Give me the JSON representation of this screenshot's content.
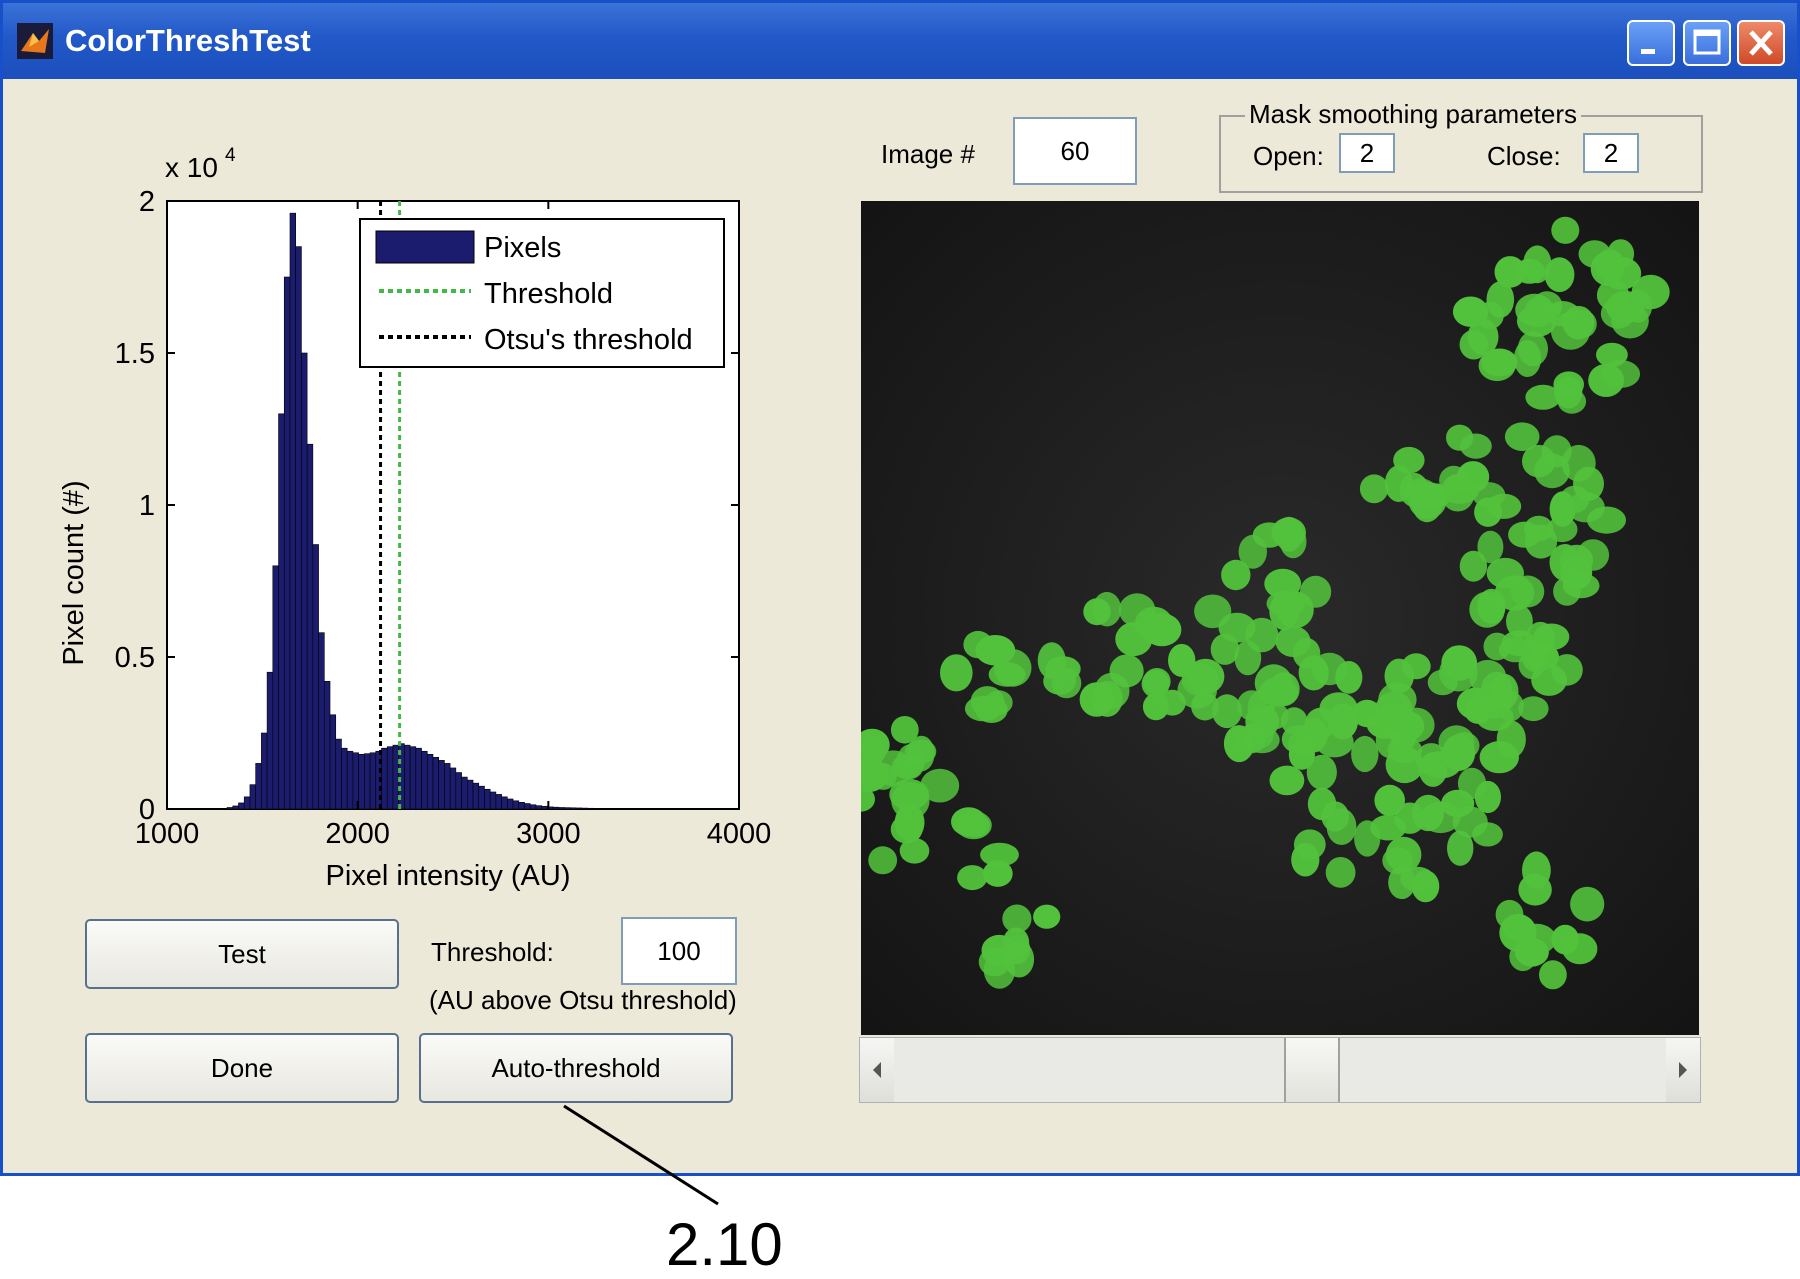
{
  "window": {
    "title": "ColorThreshTest",
    "controls": {
      "minimize_icon": "minimize-icon",
      "maximize_icon": "maximize-icon",
      "close_icon": "close-icon"
    }
  },
  "histogram": {
    "exponent_label": "x 10",
    "exponent_power": "4",
    "legend": [
      "Pixels",
      "Threshold",
      "Otsu's threshold"
    ]
  },
  "chart_data": {
    "type": "bar",
    "xlabel": "Pixel intensity (AU)",
    "ylabel": "Pixel count (#)",
    "xlim": [
      1000,
      4000
    ],
    "ylim": [
      0,
      20000
    ],
    "x_ticks": [
      "1000",
      "2000",
      "3000",
      "4000"
    ],
    "y_ticks": [
      "0",
      "0.5",
      "1",
      "1.5",
      "2"
    ],
    "bin_width": 30,
    "series": [
      {
        "name": "Pixels",
        "x": [
          1330,
          1360,
          1390,
          1420,
          1450,
          1480,
          1510,
          1540,
          1570,
          1600,
          1630,
          1660,
          1690,
          1720,
          1750,
          1780,
          1810,
          1840,
          1870,
          1900,
          1930,
          1960,
          1990,
          2020,
          2050,
          2080,
          2110,
          2140,
          2170,
          2200,
          2230,
          2260,
          2290,
          2320,
          2350,
          2380,
          2410,
          2440,
          2470,
          2500,
          2530,
          2560,
          2590,
          2620,
          2650,
          2680,
          2710,
          2740,
          2770,
          2800,
          2830,
          2860,
          2890,
          2920,
          2950,
          2980,
          3010,
          3040,
          3070,
          3100,
          3130,
          3160,
          3190,
          3220,
          3250,
          3280,
          3310,
          3340,
          3370,
          3400,
          3430,
          3460,
          3490,
          3520,
          3550,
          3580,
          3610,
          3640,
          3670,
          3700,
          3730
        ],
        "values": [
          50,
          100,
          200,
          400,
          800,
          1500,
          2500,
          4500,
          8000,
          13000,
          17500,
          19600,
          18500,
          15000,
          12000,
          8700,
          5800,
          4200,
          3100,
          2300,
          2000,
          1900,
          1850,
          1800,
          1820,
          1850,
          1900,
          2000,
          2050,
          2100,
          2150,
          2100,
          2050,
          2000,
          1900,
          1800,
          1700,
          1600,
          1500,
          1350,
          1200,
          1050,
          950,
          850,
          750,
          650,
          560,
          480,
          400,
          330,
          270,
          220,
          180,
          140,
          110,
          90,
          70,
          60,
          50,
          45,
          40,
          35,
          30,
          25,
          22,
          20,
          18,
          16,
          14,
          12,
          10,
          10,
          8,
          8,
          6,
          6,
          5,
          5,
          4,
          4,
          3
        ]
      }
    ],
    "threshold": 2220,
    "otsu_threshold": 2120,
    "colors": {
      "bars": "#1c1c6e",
      "threshold": "#44b844",
      "otsu": "#000000"
    }
  },
  "controls": {
    "test_button": "Test",
    "done_button": "Done",
    "auto_threshold_button": "Auto-threshold",
    "threshold_label": "Threshold:",
    "threshold_value": "100",
    "threshold_note": "(AU above Otsu threshold)",
    "image_label": "Image #",
    "image_value": "60",
    "mask_group_title": "Mask smoothing parameters",
    "open_label": "Open:",
    "open_value": "2",
    "close_label": "Close:",
    "close_value": "2"
  },
  "image_slider": {
    "position_fraction": 0.53
  },
  "callout": {
    "label": "2.10"
  }
}
